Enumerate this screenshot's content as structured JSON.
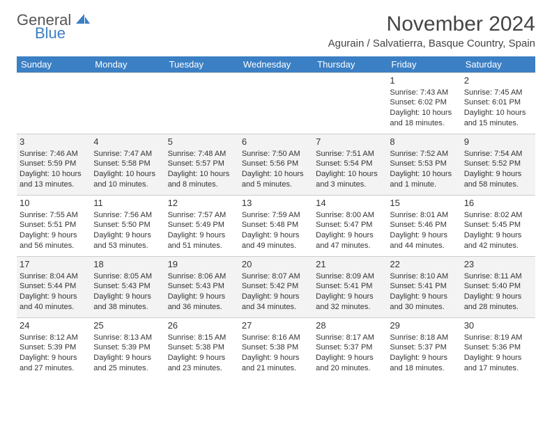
{
  "brand": {
    "general": "General",
    "blue": "Blue"
  },
  "title": "November 2024",
  "location": "Agurain / Salvatierra, Basque Country, Spain",
  "colors": {
    "header_bg": "#3b7fc4",
    "header_text": "#ffffff",
    "alt_row_bg": "#f3f3f3",
    "text": "#333333",
    "border": "#cccccc"
  },
  "day_headers": [
    "Sunday",
    "Monday",
    "Tuesday",
    "Wednesday",
    "Thursday",
    "Friday",
    "Saturday"
  ],
  "weeks": [
    [
      null,
      null,
      null,
      null,
      null,
      {
        "n": "1",
        "sunrise": "7:43 AM",
        "sunset": "6:02 PM",
        "daylight": "10 hours and 18 minutes."
      },
      {
        "n": "2",
        "sunrise": "7:45 AM",
        "sunset": "6:01 PM",
        "daylight": "10 hours and 15 minutes."
      }
    ],
    [
      {
        "n": "3",
        "sunrise": "7:46 AM",
        "sunset": "5:59 PM",
        "daylight": "10 hours and 13 minutes."
      },
      {
        "n": "4",
        "sunrise": "7:47 AM",
        "sunset": "5:58 PM",
        "daylight": "10 hours and 10 minutes."
      },
      {
        "n": "5",
        "sunrise": "7:48 AM",
        "sunset": "5:57 PM",
        "daylight": "10 hours and 8 minutes."
      },
      {
        "n": "6",
        "sunrise": "7:50 AM",
        "sunset": "5:56 PM",
        "daylight": "10 hours and 5 minutes."
      },
      {
        "n": "7",
        "sunrise": "7:51 AM",
        "sunset": "5:54 PM",
        "daylight": "10 hours and 3 minutes."
      },
      {
        "n": "8",
        "sunrise": "7:52 AM",
        "sunset": "5:53 PM",
        "daylight": "10 hours and 1 minute."
      },
      {
        "n": "9",
        "sunrise": "7:54 AM",
        "sunset": "5:52 PM",
        "daylight": "9 hours and 58 minutes."
      }
    ],
    [
      {
        "n": "10",
        "sunrise": "7:55 AM",
        "sunset": "5:51 PM",
        "daylight": "9 hours and 56 minutes."
      },
      {
        "n": "11",
        "sunrise": "7:56 AM",
        "sunset": "5:50 PM",
        "daylight": "9 hours and 53 minutes."
      },
      {
        "n": "12",
        "sunrise": "7:57 AM",
        "sunset": "5:49 PM",
        "daylight": "9 hours and 51 minutes."
      },
      {
        "n": "13",
        "sunrise": "7:59 AM",
        "sunset": "5:48 PM",
        "daylight": "9 hours and 49 minutes."
      },
      {
        "n": "14",
        "sunrise": "8:00 AM",
        "sunset": "5:47 PM",
        "daylight": "9 hours and 47 minutes."
      },
      {
        "n": "15",
        "sunrise": "8:01 AM",
        "sunset": "5:46 PM",
        "daylight": "9 hours and 44 minutes."
      },
      {
        "n": "16",
        "sunrise": "8:02 AM",
        "sunset": "5:45 PM",
        "daylight": "9 hours and 42 minutes."
      }
    ],
    [
      {
        "n": "17",
        "sunrise": "8:04 AM",
        "sunset": "5:44 PM",
        "daylight": "9 hours and 40 minutes."
      },
      {
        "n": "18",
        "sunrise": "8:05 AM",
        "sunset": "5:43 PM",
        "daylight": "9 hours and 38 minutes."
      },
      {
        "n": "19",
        "sunrise": "8:06 AM",
        "sunset": "5:43 PM",
        "daylight": "9 hours and 36 minutes."
      },
      {
        "n": "20",
        "sunrise": "8:07 AM",
        "sunset": "5:42 PM",
        "daylight": "9 hours and 34 minutes."
      },
      {
        "n": "21",
        "sunrise": "8:09 AM",
        "sunset": "5:41 PM",
        "daylight": "9 hours and 32 minutes."
      },
      {
        "n": "22",
        "sunrise": "8:10 AM",
        "sunset": "5:41 PM",
        "daylight": "9 hours and 30 minutes."
      },
      {
        "n": "23",
        "sunrise": "8:11 AM",
        "sunset": "5:40 PM",
        "daylight": "9 hours and 28 minutes."
      }
    ],
    [
      {
        "n": "24",
        "sunrise": "8:12 AM",
        "sunset": "5:39 PM",
        "daylight": "9 hours and 27 minutes."
      },
      {
        "n": "25",
        "sunrise": "8:13 AM",
        "sunset": "5:39 PM",
        "daylight": "9 hours and 25 minutes."
      },
      {
        "n": "26",
        "sunrise": "8:15 AM",
        "sunset": "5:38 PM",
        "daylight": "9 hours and 23 minutes."
      },
      {
        "n": "27",
        "sunrise": "8:16 AM",
        "sunset": "5:38 PM",
        "daylight": "9 hours and 21 minutes."
      },
      {
        "n": "28",
        "sunrise": "8:17 AM",
        "sunset": "5:37 PM",
        "daylight": "9 hours and 20 minutes."
      },
      {
        "n": "29",
        "sunrise": "8:18 AM",
        "sunset": "5:37 PM",
        "daylight": "9 hours and 18 minutes."
      },
      {
        "n": "30",
        "sunrise": "8:19 AM",
        "sunset": "5:36 PM",
        "daylight": "9 hours and 17 minutes."
      }
    ]
  ],
  "labels": {
    "sunrise": "Sunrise: ",
    "sunset": "Sunset: ",
    "daylight": "Daylight: "
  }
}
